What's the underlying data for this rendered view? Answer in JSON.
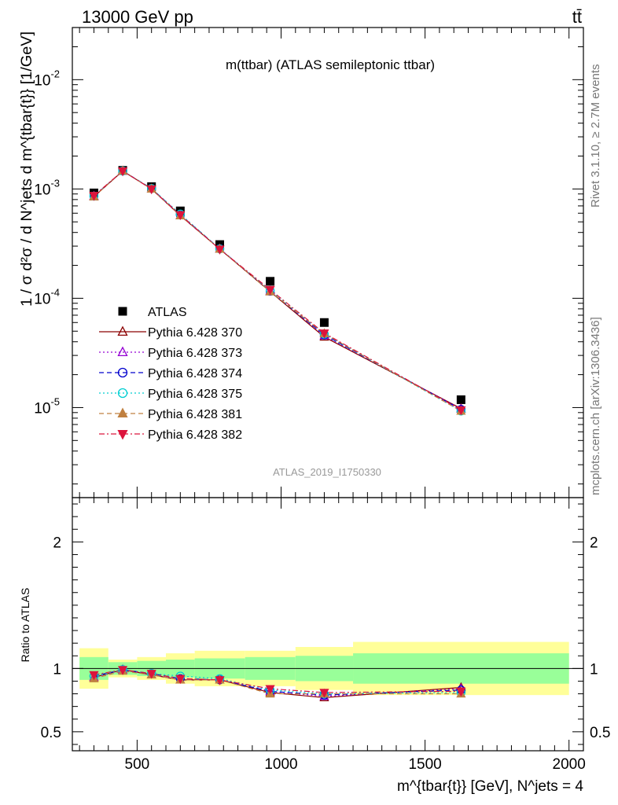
{
  "header": {
    "energy_label": "13000 GeV pp",
    "process_label": "tt̄"
  },
  "side_labels": {
    "rivet": "Rivet 3.1.10, ≥ 2.7M events",
    "mcplots": "mcplots.cern.ch [arXiv:1306.3436]"
  },
  "chart_data": [
    {
      "type": "scatter",
      "panel": "main",
      "title": "m(ttbar) (ATLAS semileptonic ttbar)",
      "watermark": "ATLAS_2019_I1750330",
      "ylabel": "1 / σ d²σ / d N^jets d m^{tbar{t}} [1/GeV]",
      "yscale": "log",
      "xlim": [
        275,
        2050
      ],
      "ylim": [
        1.5e-06,
        0.03
      ],
      "y_tick_labels": [
        "10^-5",
        "10^-4",
        "10^-3",
        "10^-2"
      ],
      "legend_position": "left-middle",
      "x": [
        350,
        450,
        550,
        650,
        787,
        962,
        1150,
        1625
      ],
      "x_bins": [
        [
          300,
          400
        ],
        [
          400,
          500
        ],
        [
          500,
          600
        ],
        [
          600,
          700
        ],
        [
          700,
          875
        ],
        [
          875,
          1050
        ],
        [
          1050,
          1250
        ],
        [
          1250,
          2000
        ]
      ],
      "series": [
        {
          "name": "ATLAS",
          "color": "#000000",
          "marker": "square-filled",
          "line": "none",
          "values": [
            0.00092,
            0.00148,
            0.00105,
            0.00063,
            0.00031,
            0.000143,
            6e-05,
            1.18e-05
          ]
        },
        {
          "name": "Pythia 6.428 370",
          "color": "#8b0000",
          "marker": "triangle-up-open",
          "line": "solid",
          "values": [
            0.00085,
            0.00146,
            0.001,
            0.00057,
            0.000282,
            0.000115,
            4.43e-05,
            9.8e-06
          ]
        },
        {
          "name": "Pythia 6.428 373",
          "color": "#9400d3",
          "marker": "triangle-up-open",
          "line": "dotted",
          "values": [
            0.00086,
            0.00146,
            0.001,
            0.00057,
            0.000283,
            0.000117,
            4.55e-05,
            9.7e-06
          ]
        },
        {
          "name": "Pythia 6.428 374",
          "color": "#0000cd",
          "marker": "circle-open",
          "line": "dashed",
          "values": [
            0.00086,
            0.00146,
            0.00101,
            0.00058,
            0.000284,
            0.000116,
            4.62e-05,
            9.6e-06
          ]
        },
        {
          "name": "Pythia 6.428 375",
          "color": "#00ced1",
          "marker": "circle-open",
          "line": "dotted",
          "values": [
            0.00086,
            0.00146,
            0.00101,
            0.00059,
            0.000283,
            0.000118,
            4.7e-05,
            9.3e-06
          ]
        },
        {
          "name": "Pythia 6.428 381",
          "color": "#c08040",
          "marker": "triangle-up-filled",
          "line": "dashed",
          "values": [
            0.00085,
            0.00146,
            0.001,
            0.00057,
            0.000282,
            0.000115,
            4.75e-05,
            9.3e-06
          ]
        },
        {
          "name": "Pythia 6.428 382",
          "color": "#dc143c",
          "marker": "triangle-down-filled",
          "line": "dashdot",
          "values": [
            0.00087,
            0.00146,
            0.001,
            0.00058,
            0.000281,
            0.00012,
            4.8e-05,
            9.5e-06
          ]
        }
      ]
    },
    {
      "type": "line",
      "panel": "ratio",
      "ylabel": "Ratio to ATLAS",
      "xlabel": "m^{tbar{t}} [GeV], N^jets = 4",
      "xlim": [
        275,
        2050
      ],
      "ylim": [
        0.35,
        2.35
      ],
      "y_ticks": [
        0.5,
        1,
        2
      ],
      "y_tick_labels": [
        "0.5",
        "1",
        "2"
      ],
      "x_ticks": [
        500,
        1000,
        1500,
        2000
      ],
      "x_tick_labels": [
        "500",
        "1000",
        "1500",
        "2000"
      ],
      "bands": {
        "inner_color": "#99ff99",
        "outer_color": "#ffff99",
        "inner_halfwidth": [
          0.09,
          0.05,
          0.06,
          0.07,
          0.08,
          0.09,
          0.1,
          0.12
        ],
        "outer_halfwidth": [
          0.16,
          0.07,
          0.09,
          0.12,
          0.14,
          0.14,
          0.17,
          0.21
        ]
      },
      "series": [
        {
          "name": "Pythia 6.428 370",
          "values": [
            0.93,
            0.99,
            0.95,
            0.91,
            0.91,
            0.81,
            0.77,
            0.85
          ]
        },
        {
          "name": "Pythia 6.428 373",
          "values": [
            0.93,
            0.99,
            0.95,
            0.91,
            0.91,
            0.82,
            0.78,
            0.84
          ]
        },
        {
          "name": "Pythia 6.428 374",
          "values": [
            0.94,
            0.99,
            0.96,
            0.92,
            0.91,
            0.82,
            0.79,
            0.83
          ]
        },
        {
          "name": "Pythia 6.428 375",
          "values": [
            0.94,
            0.99,
            0.96,
            0.94,
            0.92,
            0.83,
            0.8,
            0.81
          ]
        },
        {
          "name": "Pythia 6.428 381",
          "values": [
            0.92,
            0.98,
            0.95,
            0.91,
            0.91,
            0.8,
            0.8,
            0.8
          ]
        },
        {
          "name": "Pythia 6.428 382",
          "values": [
            0.95,
            0.99,
            0.96,
            0.92,
            0.91,
            0.84,
            0.81,
            0.82
          ]
        }
      ]
    }
  ]
}
